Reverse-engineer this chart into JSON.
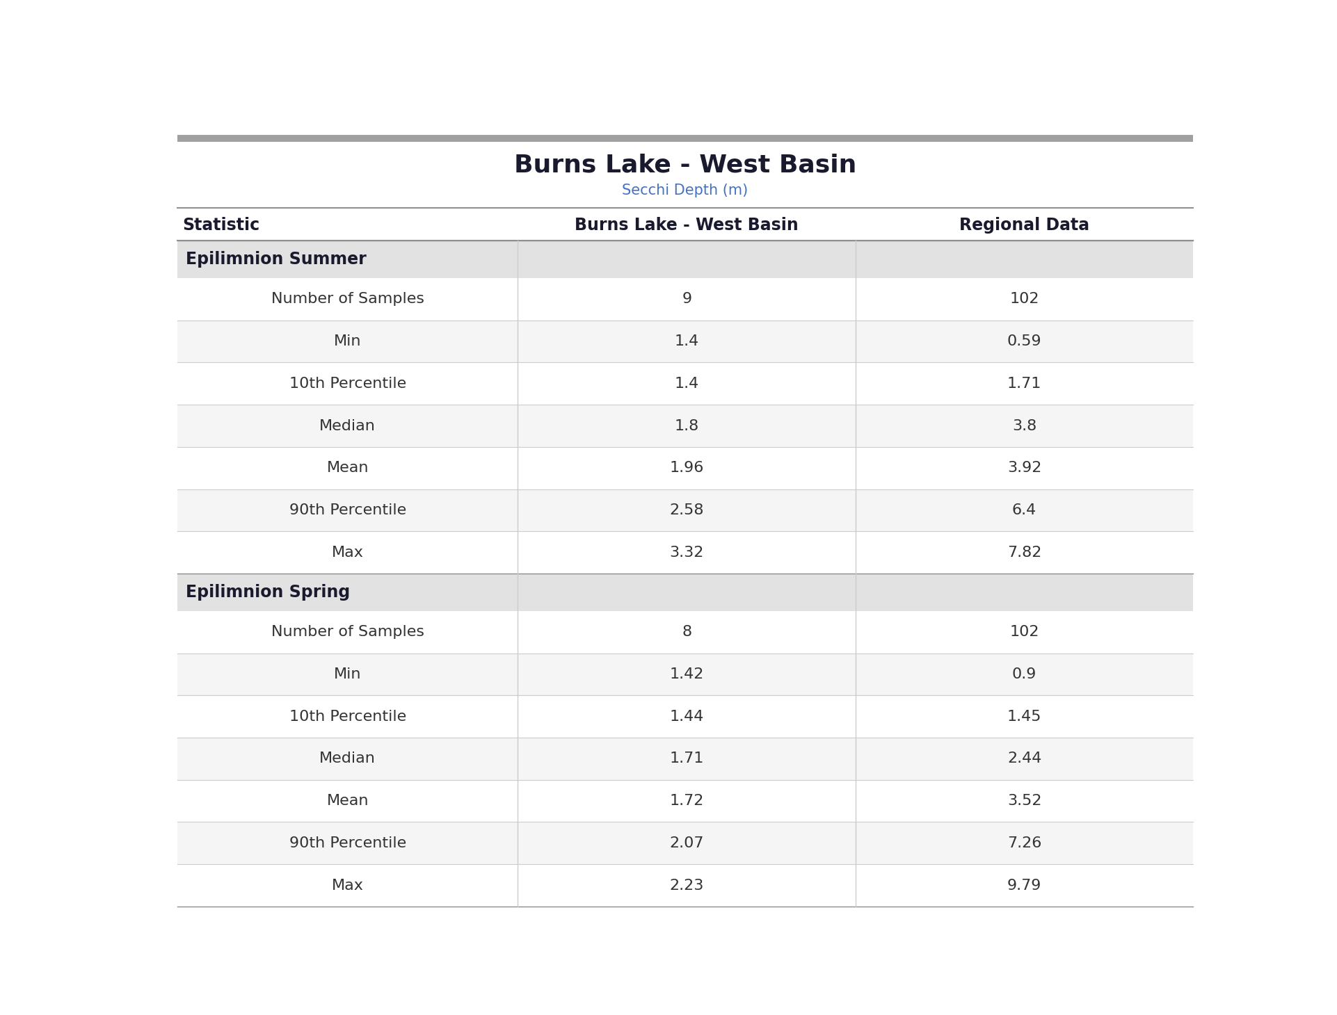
{
  "title": "Burns Lake - West Basin",
  "subtitle": "Secchi Depth (m)",
  "col_headers": [
    "Statistic",
    "Burns Lake - West Basin",
    "Regional Data"
  ],
  "sections": [
    {
      "label": "Epilimnion Summer",
      "rows": [
        [
          "Number of Samples",
          "9",
          "102"
        ],
        [
          "Min",
          "1.4",
          "0.59"
        ],
        [
          "10th Percentile",
          "1.4",
          "1.71"
        ],
        [
          "Median",
          "1.8",
          "3.8"
        ],
        [
          "Mean",
          "1.96",
          "3.92"
        ],
        [
          "90th Percentile",
          "2.58",
          "6.4"
        ],
        [
          "Max",
          "3.32",
          "7.82"
        ]
      ]
    },
    {
      "label": "Epilimnion Spring",
      "rows": [
        [
          "Number of Samples",
          "8",
          "102"
        ],
        [
          "Min",
          "1.42",
          "0.9"
        ],
        [
          "10th Percentile",
          "1.44",
          "1.45"
        ],
        [
          "Median",
          "1.71",
          "2.44"
        ],
        [
          "Mean",
          "1.72",
          "3.52"
        ],
        [
          "90th Percentile",
          "2.07",
          "7.26"
        ],
        [
          "Max",
          "2.23",
          "9.79"
        ]
      ]
    }
  ],
  "title_color": "#1a1a2e",
  "subtitle_color": "#4472c4",
  "header_text_color": "#1a1a2e",
  "section_bg_color": "#e2e2e2",
  "section_text_color": "#1a1a2e",
  "row_even_bg": "#ffffff",
  "row_odd_bg": "#f5f5f5",
  "data_text_color": "#333333",
  "grid_color": "#cccccc",
  "top_bar_color": "#a0a0a0",
  "header_line_color": "#909090"
}
